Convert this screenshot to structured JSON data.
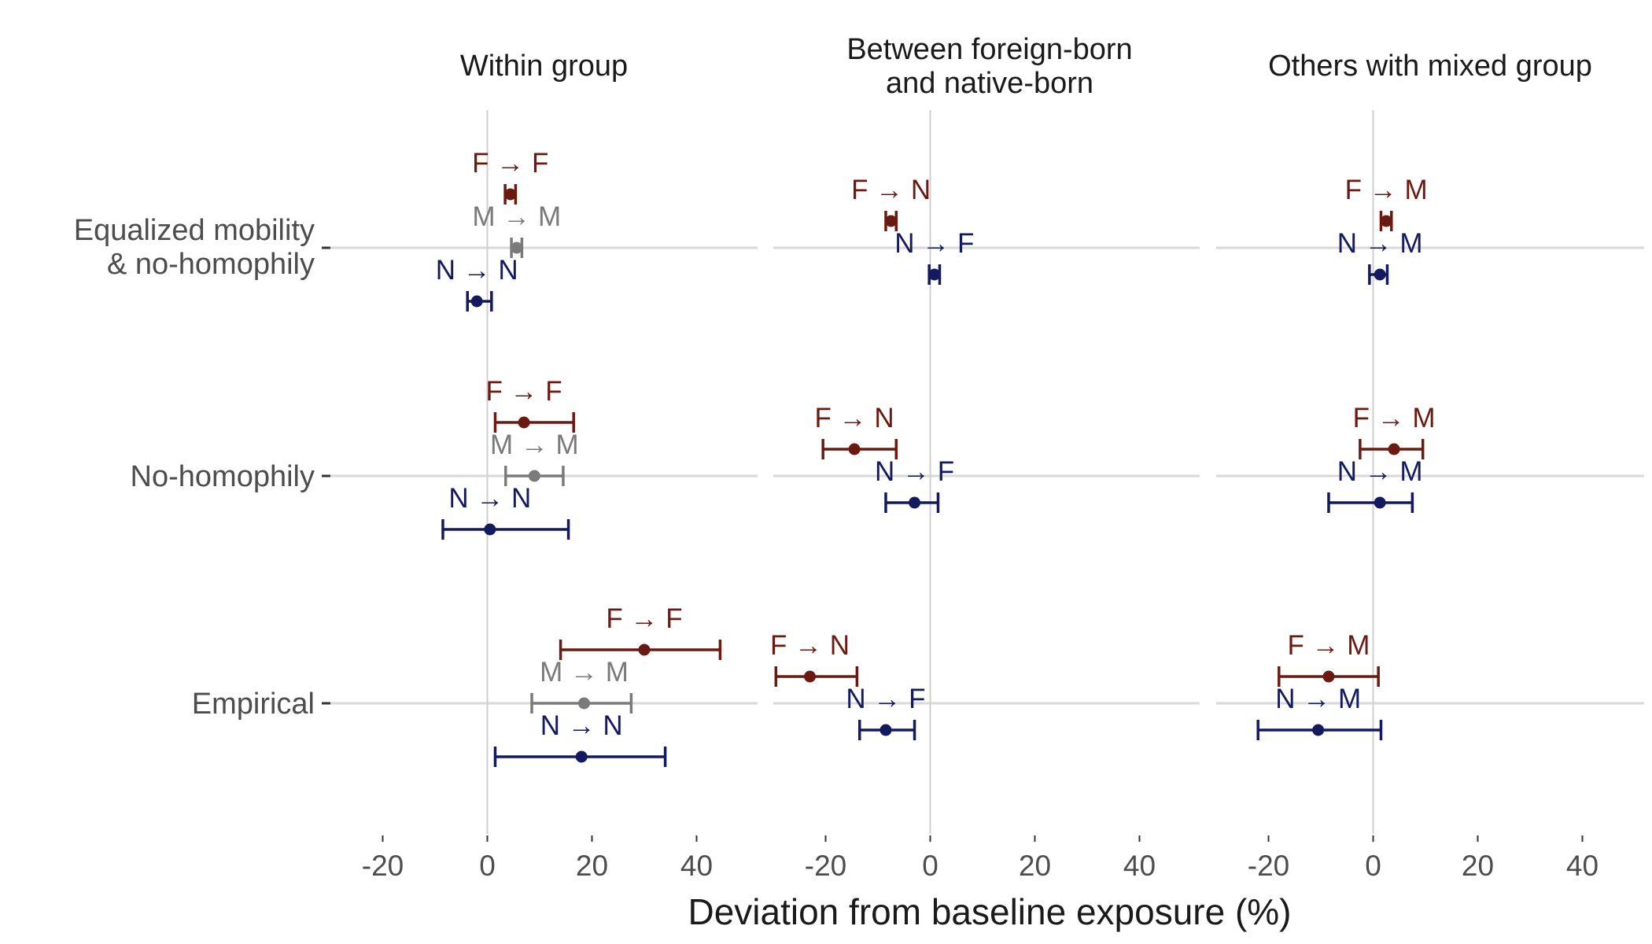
{
  "chart_data": {
    "type": "errorbar",
    "xlabel": "Deviation from baseline exposure (%)",
    "xlim": [
      -30,
      48
    ],
    "xticks": [
      -20,
      0,
      20,
      40
    ],
    "panels": [
      {
        "title": [
          "Within group"
        ]
      },
      {
        "title": [
          "Between foreign-born",
          "and native-born"
        ]
      },
      {
        "title": [
          "Others with mixed group"
        ]
      }
    ],
    "rows": [
      {
        "label": [
          "Equalized mobility",
          "& no-homophily"
        ]
      },
      {
        "label": [
          "No-homophily"
        ]
      },
      {
        "label": [
          "Empirical"
        ]
      }
    ],
    "colors": {
      "F": "#6b1a12",
      "M": "#7a7a7a",
      "N": "#141a5e"
    },
    "points": [
      {
        "panel": 0,
        "row": 0,
        "label": "F → F",
        "group": "F",
        "slot": -1,
        "value": 4.4,
        "lo": 3.4,
        "hi": 5.4
      },
      {
        "panel": 0,
        "row": 0,
        "label": "M → M",
        "group": "M",
        "slot": 0,
        "value": 5.6,
        "lo": 4.6,
        "hi": 6.6
      },
      {
        "panel": 0,
        "row": 0,
        "label": "N → N",
        "group": "N",
        "slot": 1,
        "value": -2.0,
        "lo": -3.8,
        "hi": 0.8
      },
      {
        "panel": 0,
        "row": 1,
        "label": "F → F",
        "group": "F",
        "slot": -1,
        "value": 7.0,
        "lo": 1.5,
        "hi": 16.5
      },
      {
        "panel": 0,
        "row": 1,
        "label": "M → M",
        "group": "M",
        "slot": 0,
        "value": 9.0,
        "lo": 3.5,
        "hi": 14.5
      },
      {
        "panel": 0,
        "row": 1,
        "label": "N → N",
        "group": "N",
        "slot": 1,
        "value": 0.5,
        "lo": -8.5,
        "hi": 15.5
      },
      {
        "panel": 0,
        "row": 2,
        "label": "F → F",
        "group": "F",
        "slot": -1,
        "value": 30.0,
        "lo": 14.0,
        "hi": 44.5
      },
      {
        "panel": 0,
        "row": 2,
        "label": "M → M",
        "group": "M",
        "slot": 0,
        "value": 18.5,
        "lo": 8.5,
        "hi": 27.5
      },
      {
        "panel": 0,
        "row": 2,
        "label": "N → N",
        "group": "N",
        "slot": 1,
        "value": 18.0,
        "lo": 1.5,
        "hi": 34.0
      },
      {
        "panel": 1,
        "row": 0,
        "label": "F → N",
        "group": "F",
        "slot": -0.5,
        "value": -7.5,
        "lo": -8.5,
        "hi": -6.5
      },
      {
        "panel": 1,
        "row": 0,
        "label": "N → F",
        "group": "N",
        "slot": 0.5,
        "value": 0.8,
        "lo": -0.2,
        "hi": 1.8
      },
      {
        "panel": 1,
        "row": 1,
        "label": "F → N",
        "group": "F",
        "slot": -0.5,
        "value": -14.5,
        "lo": -20.5,
        "hi": -6.5
      },
      {
        "panel": 1,
        "row": 1,
        "label": "N → F",
        "group": "N",
        "slot": 0.5,
        "value": -3.0,
        "lo": -8.5,
        "hi": 1.5
      },
      {
        "panel": 1,
        "row": 2,
        "label": "F → N",
        "group": "F",
        "slot": -0.5,
        "value": -23.0,
        "lo": -29.5,
        "hi": -14.0
      },
      {
        "panel": 1,
        "row": 2,
        "label": "N → F",
        "group": "N",
        "slot": 0.5,
        "value": -8.5,
        "lo": -13.5,
        "hi": -3.0
      },
      {
        "panel": 2,
        "row": 0,
        "label": "F → M",
        "group": "F",
        "slot": -0.5,
        "value": 2.5,
        "lo": 1.5,
        "hi": 3.5
      },
      {
        "panel": 2,
        "row": 0,
        "label": "N → M",
        "group": "N",
        "slot": 0.5,
        "value": 1.3,
        "lo": -0.7,
        "hi": 2.7
      },
      {
        "panel": 2,
        "row": 1,
        "label": "F → M",
        "group": "F",
        "slot": -0.5,
        "value": 4.0,
        "lo": -2.5,
        "hi": 9.5
      },
      {
        "panel": 2,
        "row": 1,
        "label": "N → M",
        "group": "N",
        "slot": 0.5,
        "value": 1.3,
        "lo": -8.5,
        "hi": 7.5
      },
      {
        "panel": 2,
        "row": 2,
        "label": "F → M",
        "group": "F",
        "slot": -0.5,
        "value": -8.5,
        "lo": -18.0,
        "hi": 1.0
      },
      {
        "panel": 2,
        "row": 2,
        "label": "N → M",
        "group": "N",
        "slot": 0.5,
        "value": -10.5,
        "lo": -22.0,
        "hi": 1.5
      }
    ]
  }
}
